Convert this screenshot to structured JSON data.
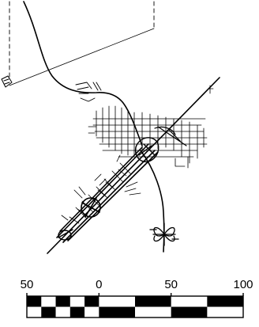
{
  "scale_bar": {
    "tick_labels": [
      "50",
      "0",
      "50",
      "100"
    ],
    "ticks": [
      -50,
      0,
      50,
      100
    ],
    "colors": {
      "ink": "#000000",
      "paper": "#ffffff"
    }
  },
  "map": {
    "icons": [
      "highway-line",
      "street-grid",
      "interchange",
      "corridor-band",
      "boundary-dashed-line"
    ]
  }
}
